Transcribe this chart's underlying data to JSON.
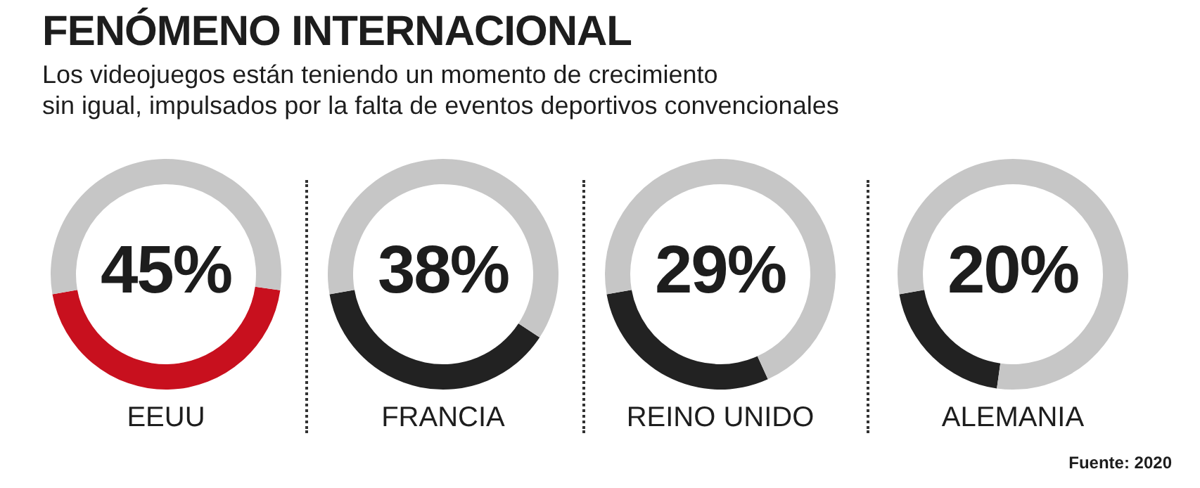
{
  "chart_data": [
    {
      "type": "donut",
      "title": "FENÓMENO INTERNACIONAL",
      "subtitle": "Los videojuegos están teniendo un momento de crecimiento\nsin igual, impulsados por la falta de eventos deportivos convencionales",
      "categories": [
        "EEUU",
        null
      ],
      "values": [
        45,
        55
      ],
      "colors": [
        "#c8101e",
        "#c6c6c6"
      ],
      "annotations": [
        "45%"
      ]
    },
    {
      "type": "donut",
      "categories": [
        "FRANCIA",
        null
      ],
      "values": [
        38,
        62
      ],
      "colors": [
        "#222222",
        "#c6c6c6"
      ],
      "annotations": [
        "38%"
      ]
    },
    {
      "type": "donut",
      "categories": [
        "REINO UNIDO",
        null
      ],
      "values": [
        29,
        71
      ],
      "colors": [
        "#222222",
        "#c6c6c6"
      ],
      "annotations": [
        "29%"
      ]
    },
    {
      "type": "donut",
      "categories": [
        "ALEMANIA",
        null
      ],
      "values": [
        20,
        80
      ],
      "colors": [
        "#222222",
        "#c6c6c6"
      ],
      "annotations": [
        "20%",
        "Fuente: 2020"
      ]
    }
  ]
}
